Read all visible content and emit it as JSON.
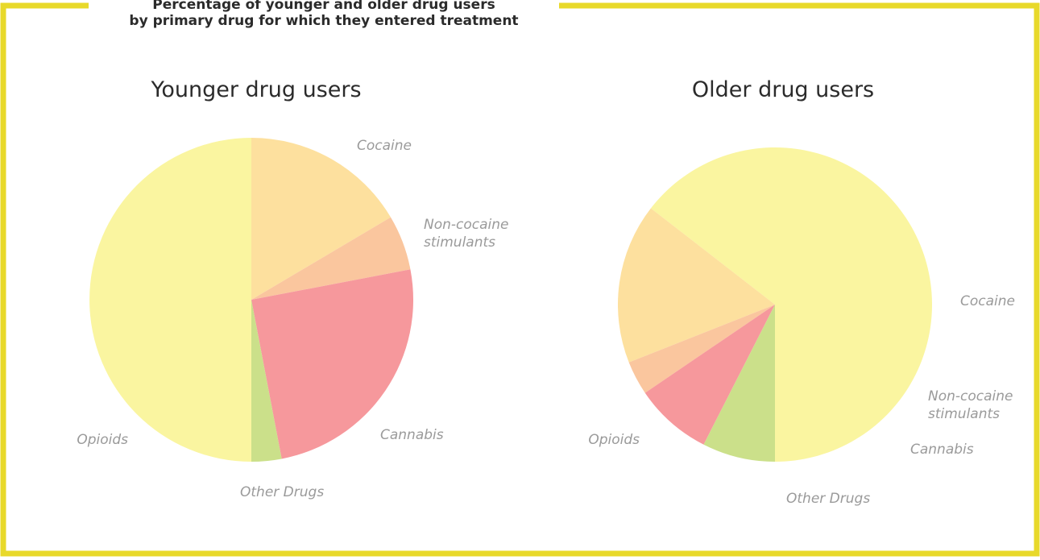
{
  "header": {
    "title_lines": [
      "Percentage of younger and older drug users",
      "by primary drug for which they entered treatment"
    ]
  },
  "colors": {
    "frame_border": "#e8d92a",
    "label_text": "#9a9a9a",
    "title_text": "#2b2b2b"
  },
  "chart_data": [
    {
      "type": "pie",
      "title": "Younger drug users",
      "start": "top, clockwise",
      "slices": [
        {
          "label": "Cocaine",
          "label_lines": [
            "Cocaine"
          ],
          "value": 16.5,
          "color": "#fde09e"
        },
        {
          "label": "Non-cocaine stimulants",
          "label_lines": [
            "Non-cocaine",
            "stimulants"
          ],
          "value": 5.5,
          "color": "#fac69e"
        },
        {
          "label": "Cannabis",
          "label_lines": [
            "Cannabis"
          ],
          "value": 25,
          "color": "#f6989c"
        },
        {
          "label": "Other Drugs",
          "label_lines": [
            "Other Drugs"
          ],
          "value": 3,
          "color": "#cbe08a"
        },
        {
          "label": "Opioids",
          "label_lines": [
            "Opioids"
          ],
          "value": 50,
          "color": "#faf5a0"
        }
      ]
    },
    {
      "type": "pie",
      "title": "Older drug users",
      "start": "bottom, counter-clockwise",
      "slices": [
        {
          "label": "Opioids",
          "label_lines": [
            "Opioids"
          ],
          "value": 64.5,
          "color": "#faf5a0"
        },
        {
          "label": "Cocaine",
          "label_lines": [
            "Cocaine"
          ],
          "value": 16.5,
          "color": "#fde09e"
        },
        {
          "label": "Non-cocaine stimulants",
          "label_lines": [
            "Non-cocaine",
            "stimulants"
          ],
          "value": 3.5,
          "color": "#fac69e"
        },
        {
          "label": "Cannabis",
          "label_lines": [
            "Cannabis"
          ],
          "value": 8,
          "color": "#f6989c"
        },
        {
          "label": "Other Drugs",
          "label_lines": [
            "Other Drugs"
          ],
          "value": 7.5,
          "color": "#cbe08a"
        }
      ]
    }
  ]
}
